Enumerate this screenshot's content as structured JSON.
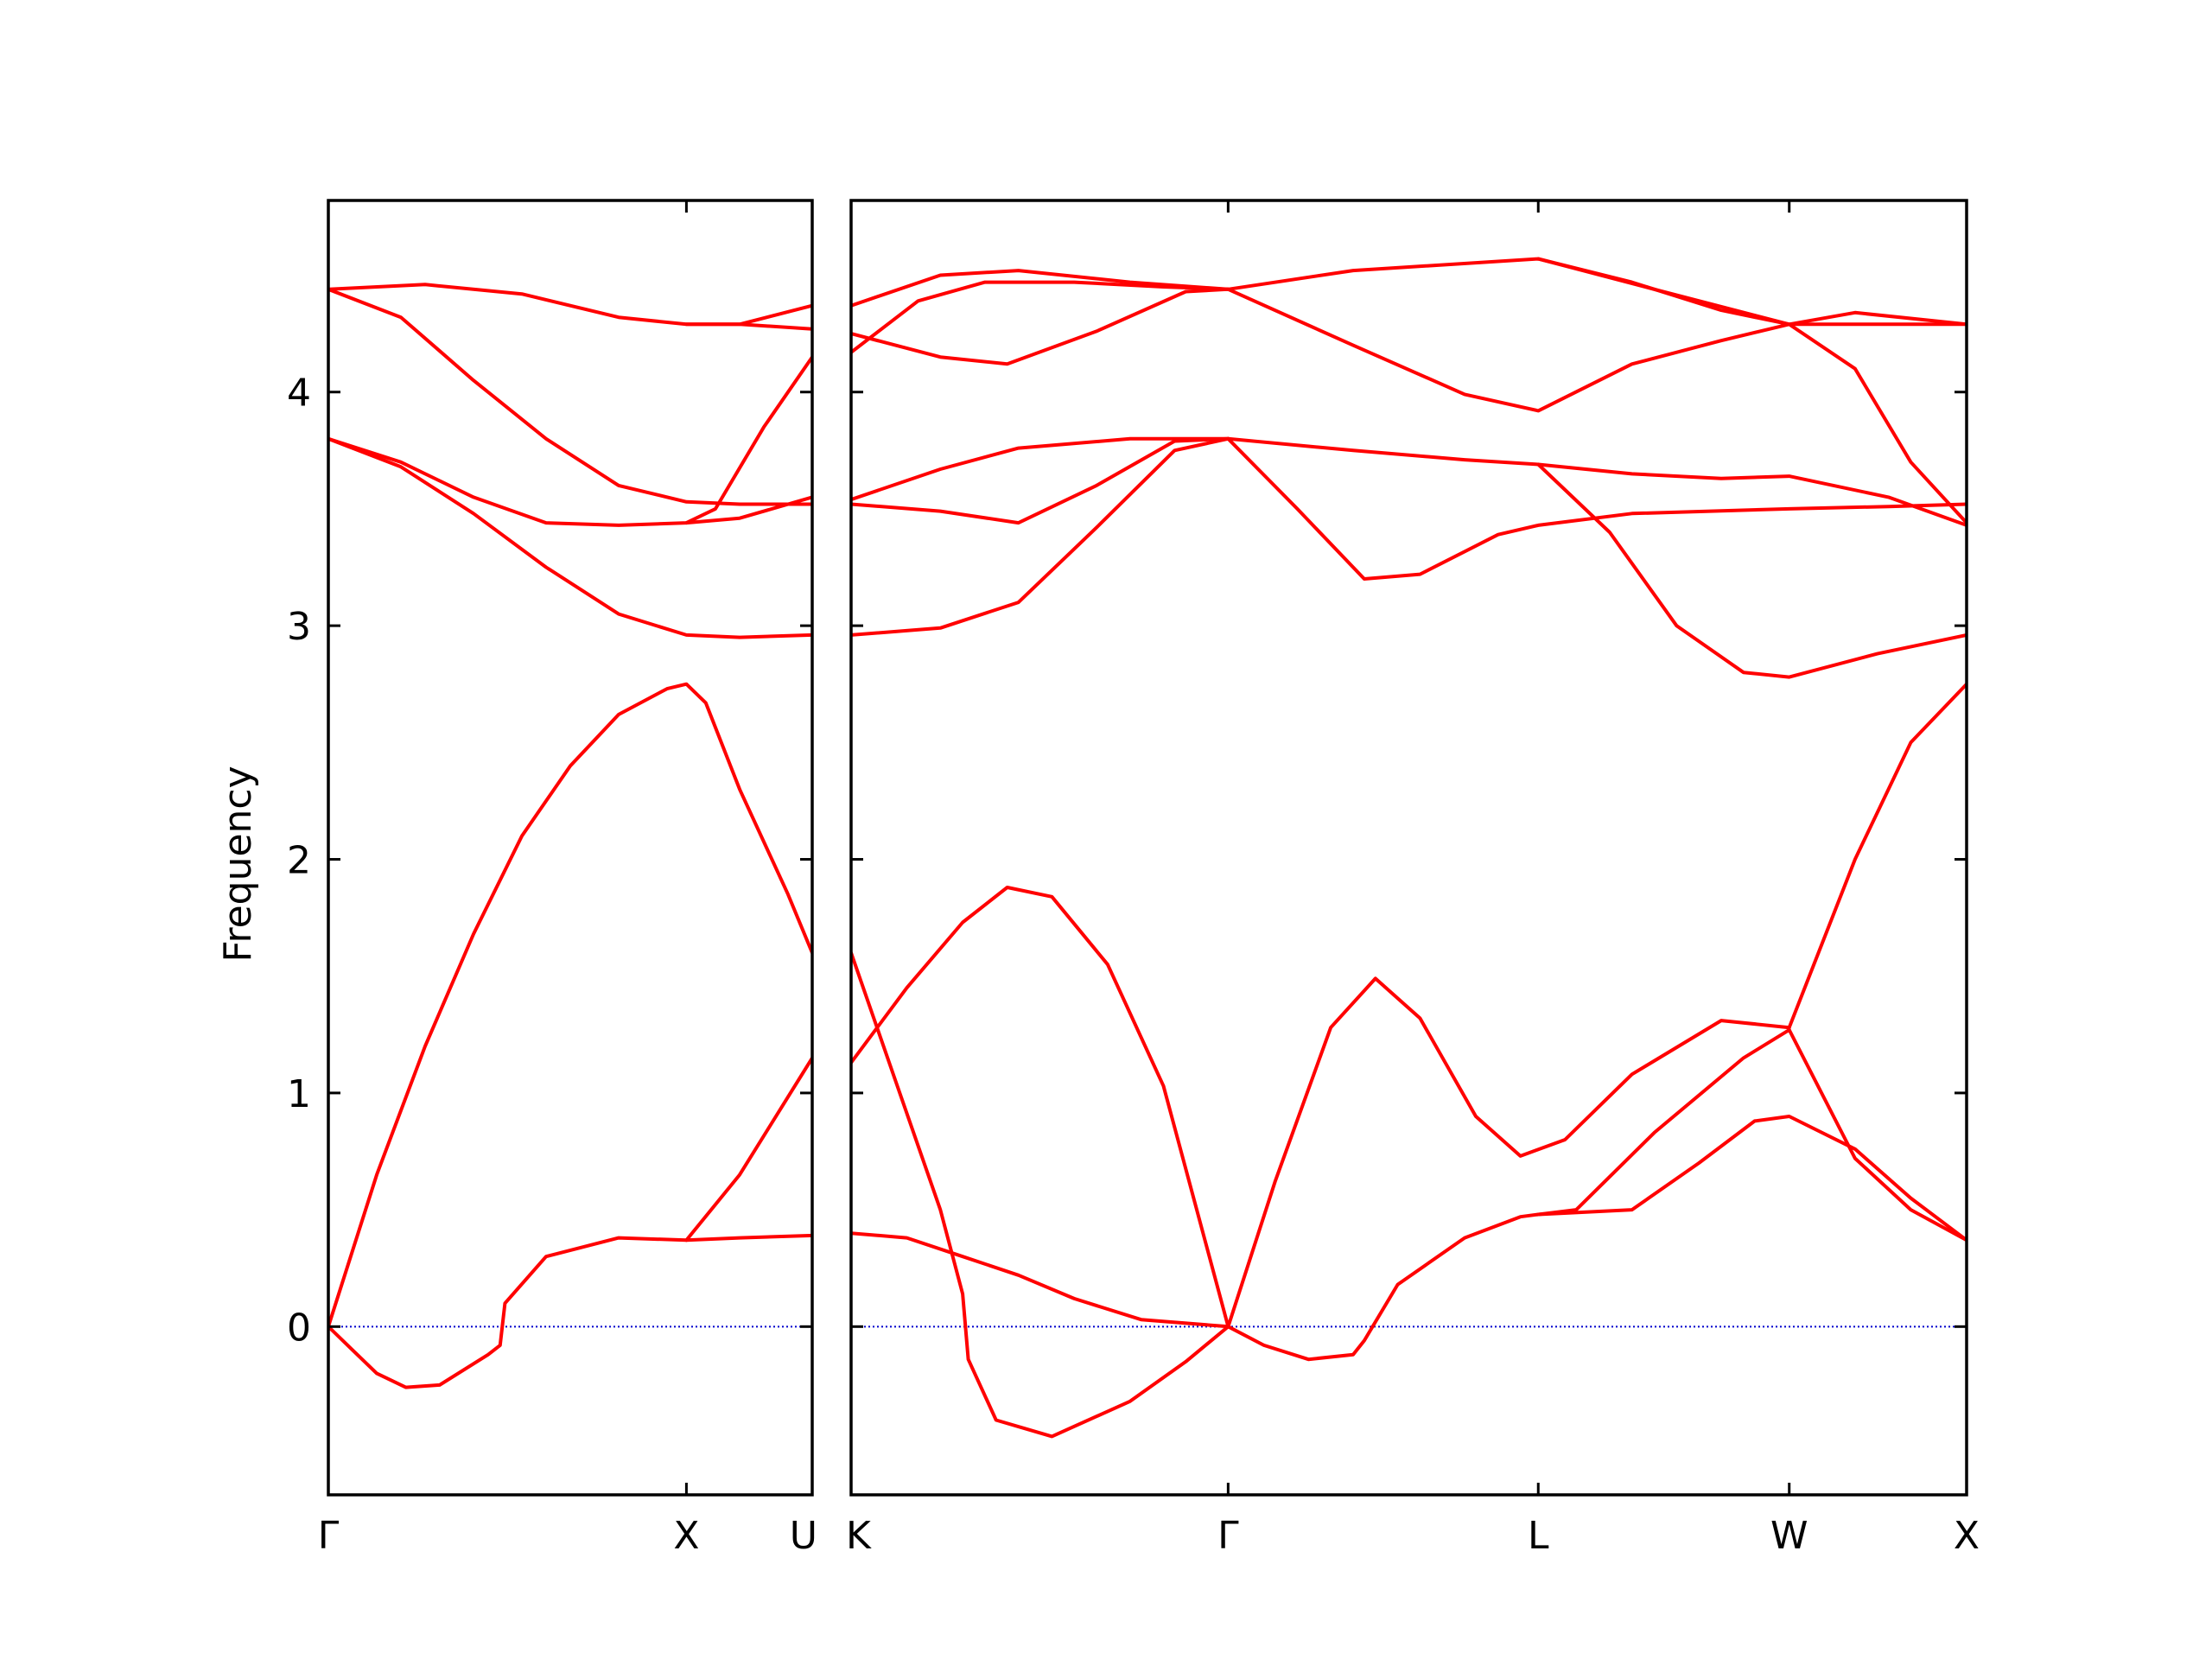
{
  "chart_data": {
    "type": "line",
    "title": "",
    "ylabel": "Frequency",
    "ylim": [
      -0.72,
      4.82
    ],
    "yticks": [
      0,
      1,
      2,
      3,
      4
    ],
    "line_color": "#ff0000",
    "zero_line_color": "#0000cc",
    "grid": false,
    "legend": "none",
    "panels": [
      {
        "xlim": [
          0,
          1.0
        ],
        "xticks": [
          {
            "pos": 0.0,
            "label": "Γ"
          },
          {
            "pos": 0.74,
            "label": "X"
          },
          {
            "pos": 1.0,
            "label": "U"
          }
        ],
        "bands": [
          [
            [
              0,
              0
            ],
            [
              0.05,
              -0.1
            ],
            [
              0.1,
              -0.2
            ],
            [
              0.16,
              -0.26
            ],
            [
              0.23,
              -0.25
            ],
            [
              0.33,
              -0.12
            ],
            [
              0.355,
              -0.08
            ],
            [
              0.365,
              0.1
            ],
            [
              0.45,
              0.3
            ],
            [
              0.6,
              0.38
            ],
            [
              0.74,
              0.37
            ],
            [
              0.85,
              0.38
            ],
            [
              1.0,
              0.39
            ]
          ],
          [
            [
              0,
              0
            ],
            [
              0.1,
              0.65
            ],
            [
              0.2,
              1.2
            ],
            [
              0.3,
              1.68
            ],
            [
              0.4,
              2.1
            ],
            [
              0.5,
              2.4
            ],
            [
              0.6,
              2.62
            ],
            [
              0.7,
              2.73
            ],
            [
              0.74,
              2.75
            ],
            [
              0.78,
              2.67
            ],
            [
              0.85,
              2.3
            ],
            [
              0.95,
              1.85
            ],
            [
              1.0,
              1.6
            ]
          ],
          [
            [
              0,
              3.8
            ],
            [
              0.15,
              3.7
            ],
            [
              0.3,
              3.55
            ],
            [
              0.45,
              3.44
            ],
            [
              0.6,
              3.43
            ],
            [
              0.74,
              3.44
            ],
            [
              0.85,
              3.46
            ],
            [
              1.0,
              3.55
            ]
          ],
          [
            [
              0,
              3.8
            ],
            [
              0.15,
              3.68
            ],
            [
              0.3,
              3.48
            ],
            [
              0.45,
              3.25
            ],
            [
              0.6,
              3.05
            ],
            [
              0.74,
              2.96
            ],
            [
              0.85,
              2.95
            ],
            [
              1.0,
              2.96
            ]
          ],
          [
            [
              0,
              4.44
            ],
            [
              0.15,
              4.32
            ],
            [
              0.3,
              4.05
            ],
            [
              0.45,
              3.8
            ],
            [
              0.6,
              3.6
            ],
            [
              0.74,
              3.53
            ],
            [
              0.85,
              3.52
            ],
            [
              1.0,
              3.52
            ]
          ],
          [
            [
              0,
              4.44
            ],
            [
              0.2,
              4.46
            ],
            [
              0.4,
              4.42
            ],
            [
              0.6,
              4.32
            ],
            [
              0.74,
              4.29
            ],
            [
              0.85,
              4.29
            ],
            [
              1.0,
              4.37
            ]
          ],
          [
            [
              0.74,
              0.37
            ],
            [
              0.85,
              0.65
            ],
            [
              1.0,
              1.15
            ]
          ],
          [
            [
              0.74,
              3.44
            ],
            [
              0.8,
              3.5
            ],
            [
              0.9,
              3.85
            ],
            [
              1.0,
              4.15
            ]
          ],
          [
            [
              0.74,
              4.29
            ],
            [
              0.85,
              4.29
            ],
            [
              1.0,
              4.27
            ]
          ]
        ]
      },
      {
        "xlim": [
          0,
          1.0
        ],
        "xticks": [
          {
            "pos": 0.0,
            "label": "K"
          },
          {
            "pos": 0.338,
            "label": "Γ"
          },
          {
            "pos": 0.616,
            "label": "L"
          },
          {
            "pos": 0.841,
            "label": "W"
          },
          {
            "pos": 1.0,
            "label": "X"
          }
        ],
        "bands": [
          [
            [
              0,
              1.13
            ],
            [
              0.05,
              1.45
            ],
            [
              0.1,
              1.73
            ],
            [
              0.14,
              1.88
            ],
            [
              0.18,
              1.84
            ],
            [
              0.23,
              1.55
            ],
            [
              0.28,
              1.03
            ],
            [
              0.338,
              0
            ]
          ],
          [
            [
              0,
              1.6
            ],
            [
              0.04,
              1.05
            ],
            [
              0.08,
              0.5
            ],
            [
              0.1,
              0.14
            ],
            [
              0.105,
              -0.14
            ],
            [
              0.13,
              -0.4
            ],
            [
              0.18,
              -0.47
            ],
            [
              0.25,
              -0.32
            ],
            [
              0.3,
              -0.15
            ],
            [
              0.338,
              0
            ]
          ],
          [
            [
              0,
              0.4
            ],
            [
              0.05,
              0.38
            ],
            [
              0.1,
              0.3
            ],
            [
              0.15,
              0.22
            ],
            [
              0.2,
              0.12
            ],
            [
              0.26,
              0.03
            ],
            [
              0.338,
              0
            ]
          ],
          [
            [
              0.338,
              0
            ],
            [
              0.38,
              0.62
            ],
            [
              0.43,
              1.28
            ],
            [
              0.47,
              1.49
            ],
            [
              0.51,
              1.32
            ],
            [
              0.56,
              0.9
            ],
            [
              0.6,
              0.73
            ],
            [
              0.64,
              0.8
            ],
            [
              0.7,
              1.08
            ],
            [
              0.78,
              1.31
            ],
            [
              0.841,
              1.28
            ]
          ],
          [
            [
              0.338,
              0
            ],
            [
              0.37,
              -0.08
            ],
            [
              0.41,
              -0.14
            ],
            [
              0.45,
              -0.12
            ],
            [
              0.46,
              -0.06
            ],
            [
              0.49,
              0.18
            ],
            [
              0.55,
              0.38
            ],
            [
              0.6,
              0.47
            ],
            [
              0.616,
              0.48
            ],
            [
              0.65,
              0.5
            ],
            [
              0.72,
              0.83
            ],
            [
              0.8,
              1.15
            ],
            [
              0.841,
              1.27
            ]
          ],
          [
            [
              0.616,
              0.48
            ],
            [
              0.7,
              0.5
            ],
            [
              0.76,
              0.7
            ],
            [
              0.81,
              0.88
            ],
            [
              0.841,
              0.9
            ],
            [
              0.9,
              0.76
            ],
            [
              0.95,
              0.55
            ],
            [
              1.0,
              0.37
            ]
          ],
          [
            [
              0.841,
              1.28
            ],
            [
              0.9,
              2.0
            ],
            [
              0.95,
              2.5
            ],
            [
              1.0,
              2.75
            ]
          ],
          [
            [
              0.841,
              1.27
            ],
            [
              0.9,
              0.72
            ],
            [
              0.95,
              0.5
            ],
            [
              1.0,
              0.37
            ]
          ],
          [
            [
              0,
              2.96
            ],
            [
              0.08,
              2.99
            ],
            [
              0.15,
              3.1
            ],
            [
              0.22,
              3.42
            ],
            [
              0.29,
              3.75
            ],
            [
              0.338,
              3.8
            ]
          ],
          [
            [
              0,
              3.52
            ],
            [
              0.08,
              3.49
            ],
            [
              0.15,
              3.44
            ],
            [
              0.22,
              3.6
            ],
            [
              0.29,
              3.79
            ],
            [
              0.338,
              3.8
            ]
          ],
          [
            [
              0,
              3.54
            ],
            [
              0.08,
              3.67
            ],
            [
              0.15,
              3.76
            ],
            [
              0.25,
              3.8
            ],
            [
              0.338,
              3.8
            ],
            [
              0.45,
              3.75
            ],
            [
              0.55,
              3.71
            ],
            [
              0.616,
              3.69
            ],
            [
              0.7,
              3.65
            ],
            [
              0.78,
              3.63
            ],
            [
              0.841,
              3.64
            ],
            [
              0.93,
              3.55
            ],
            [
              1.0,
              3.43
            ]
          ],
          [
            [
              0.338,
              3.8
            ],
            [
              0.4,
              3.5
            ],
            [
              0.46,
              3.2
            ],
            [
              0.51,
              3.22
            ],
            [
              0.58,
              3.39
            ],
            [
              0.616,
              3.43
            ],
            [
              0.7,
              3.48
            ],
            [
              0.841,
              3.5
            ],
            [
              0.93,
              3.51
            ],
            [
              1.0,
              3.52
            ]
          ],
          [
            [
              0.616,
              3.69
            ],
            [
              0.68,
              3.4
            ],
            [
              0.74,
              3.0
            ],
            [
              0.8,
              2.8
            ],
            [
              0.841,
              2.78
            ],
            [
              0.92,
              2.88
            ],
            [
              1.0,
              2.96
            ]
          ],
          [
            [
              0,
              4.17
            ],
            [
              0.06,
              4.39
            ],
            [
              0.12,
              4.47
            ],
            [
              0.2,
              4.47
            ],
            [
              0.28,
              4.45
            ],
            [
              0.338,
              4.44
            ]
          ],
          [
            [
              0,
              4.37
            ],
            [
              0.08,
              4.5
            ],
            [
              0.15,
              4.52
            ],
            [
              0.25,
              4.47
            ],
            [
              0.338,
              4.44
            ],
            [
              0.45,
              4.52
            ],
            [
              0.616,
              4.57
            ],
            [
              0.72,
              4.44
            ],
            [
              0.841,
              4.29
            ],
            [
              0.9,
              4.29
            ],
            [
              1.0,
              4.29
            ]
          ],
          [
            [
              0,
              4.25
            ],
            [
              0.08,
              4.15
            ],
            [
              0.14,
              4.12
            ],
            [
              0.22,
              4.26
            ],
            [
              0.3,
              4.43
            ],
            [
              0.338,
              4.44
            ]
          ],
          [
            [
              0.338,
              4.44
            ],
            [
              0.45,
              4.2
            ],
            [
              0.55,
              3.99
            ],
            [
              0.616,
              3.92
            ],
            [
              0.7,
              4.12
            ],
            [
              0.78,
              4.22
            ],
            [
              0.841,
              4.29
            ],
            [
              0.9,
              4.34
            ],
            [
              1.0,
              4.29
            ]
          ],
          [
            [
              0.616,
              4.57
            ],
            [
              0.7,
              4.47
            ],
            [
              0.78,
              4.35
            ],
            [
              0.841,
              4.29
            ],
            [
              0.9,
              4.1
            ],
            [
              0.95,
              3.7
            ],
            [
              1.0,
              3.44
            ]
          ]
        ]
      }
    ]
  }
}
